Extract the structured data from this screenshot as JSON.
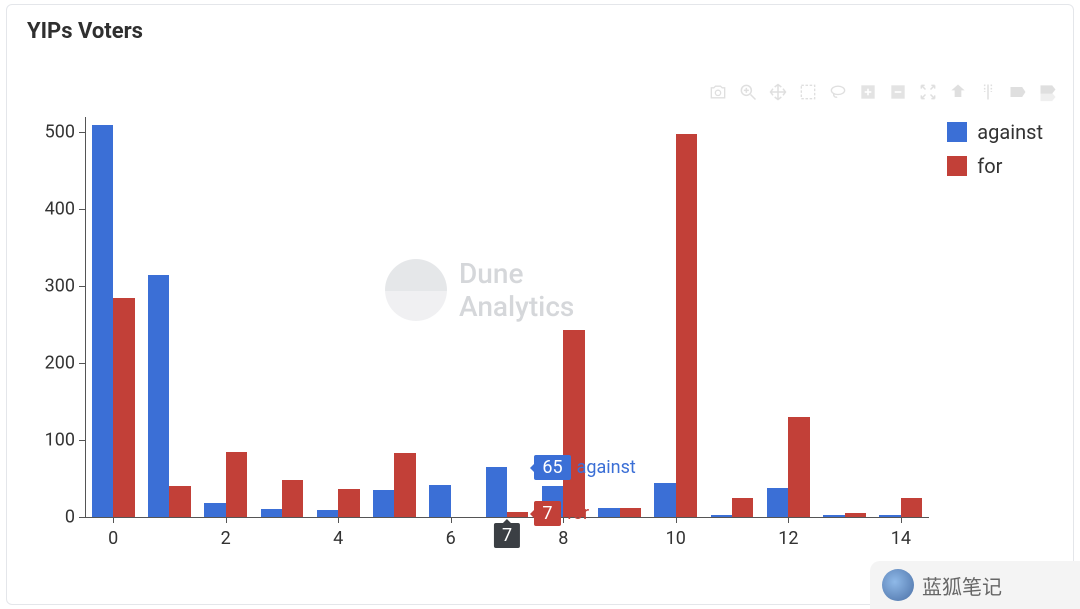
{
  "title": "YIPs Voters",
  "chart": {
    "type": "bar-grouped",
    "background_color": "#ffffff",
    "axis_color": "#555555",
    "tick_fontsize": 18,
    "ylim": [
      0,
      520
    ],
    "ytick_step": 100,
    "yticks": [
      0,
      100,
      200,
      300,
      400,
      500
    ],
    "x_categories": [
      0,
      1,
      2,
      3,
      4,
      5,
      6,
      7,
      8,
      9,
      10,
      11,
      12,
      13,
      14
    ],
    "x_tick_labels": [
      0,
      2,
      4,
      6,
      8,
      10,
      12,
      14
    ],
    "bar_group_gap": 0.2,
    "bar_width": 0.38,
    "series": [
      {
        "name": "against",
        "color": "#3b6fd6",
        "values": [
          510,
          315,
          18,
          11,
          9,
          35,
          42,
          65,
          40,
          12,
          44,
          2,
          38,
          3,
          2
        ]
      },
      {
        "name": "for",
        "color": "#c24038",
        "values": [
          285,
          40,
          85,
          48,
          36,
          83,
          0,
          7,
          243,
          12,
          498,
          25,
          130,
          5,
          25
        ]
      }
    ]
  },
  "legend": {
    "items": [
      {
        "label": "against",
        "color": "#3b6fd6"
      },
      {
        "label": "for",
        "color": "#c24038"
      }
    ],
    "fontsize": 20
  },
  "hover": {
    "x_index": 7,
    "x_label": "7",
    "rows": [
      {
        "value": "65",
        "series": "against",
        "color": "#3b6fd6"
      },
      {
        "value": "7",
        "series": "for",
        "color": "#c24038"
      }
    ]
  },
  "watermark": {
    "line1": "Dune",
    "line2": "Analytics"
  },
  "footer": {
    "label": "蓝狐笔记"
  },
  "toolbar_icons": [
    "camera",
    "zoom",
    "pan",
    "select-box",
    "lasso",
    "zoom-in",
    "zoom-out",
    "autoscale",
    "reset",
    "spike",
    "show-closest",
    "compare"
  ]
}
